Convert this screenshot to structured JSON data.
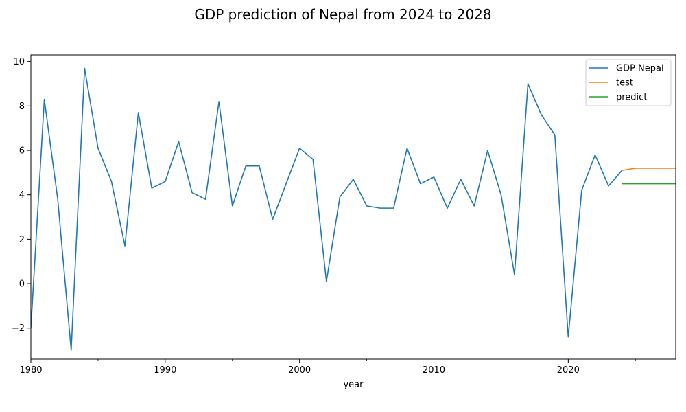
{
  "chart_data": {
    "type": "line",
    "title": "GDP prediction of Nepal from 2024 to 2028",
    "xlabel": "year",
    "ylabel": "",
    "xlim": [
      1980,
      2028
    ],
    "ylim": [
      -3.4,
      10.3
    ],
    "xticks": [
      1980,
      1990,
      2000,
      2010,
      2020
    ],
    "yticks": [
      -2,
      0,
      2,
      4,
      6,
      8,
      10
    ],
    "grid": false,
    "legend_position": "top-right",
    "series": [
      {
        "name": "GDP Nepal",
        "color": "#1f77b4",
        "x": [
          1980,
          1981,
          1982,
          1983,
          1984,
          1985,
          1986,
          1987,
          1988,
          1989,
          1990,
          1991,
          1992,
          1993,
          1994,
          1995,
          1996,
          1997,
          1998,
          1999,
          2000,
          2001,
          2002,
          2003,
          2004,
          2005,
          2006,
          2007,
          2008,
          2009,
          2010,
          2011,
          2012,
          2013,
          2014,
          2015,
          2016,
          2017,
          2018,
          2019,
          2020,
          2021,
          2022,
          2023,
          2024
        ],
        "values": [
          -2.0,
          8.3,
          3.8,
          -3.0,
          9.7,
          6.1,
          4.6,
          1.7,
          7.7,
          4.3,
          4.6,
          6.4,
          4.1,
          3.8,
          8.2,
          3.5,
          5.3,
          5.3,
          2.9,
          4.5,
          6.1,
          5.6,
          0.1,
          3.9,
          4.7,
          3.5,
          3.4,
          3.4,
          6.1,
          4.5,
          4.8,
          3.4,
          4.7,
          3.5,
          6.0,
          4.0,
          0.4,
          9.0,
          7.6,
          6.7,
          -2.4,
          4.2,
          5.8,
          4.4,
          5.1
        ]
      },
      {
        "name": "test",
        "color": "#ff7f0e",
        "x": [
          2024,
          2025,
          2026,
          2027,
          2028
        ],
        "values": [
          5.1,
          5.2,
          5.2,
          5.2,
          5.2
        ]
      },
      {
        "name": "predict",
        "color": "#2ca02c",
        "x": [
          2024,
          2025,
          2026,
          2027,
          2028
        ],
        "values": [
          4.5,
          4.5,
          4.5,
          4.5,
          4.5
        ]
      }
    ]
  }
}
